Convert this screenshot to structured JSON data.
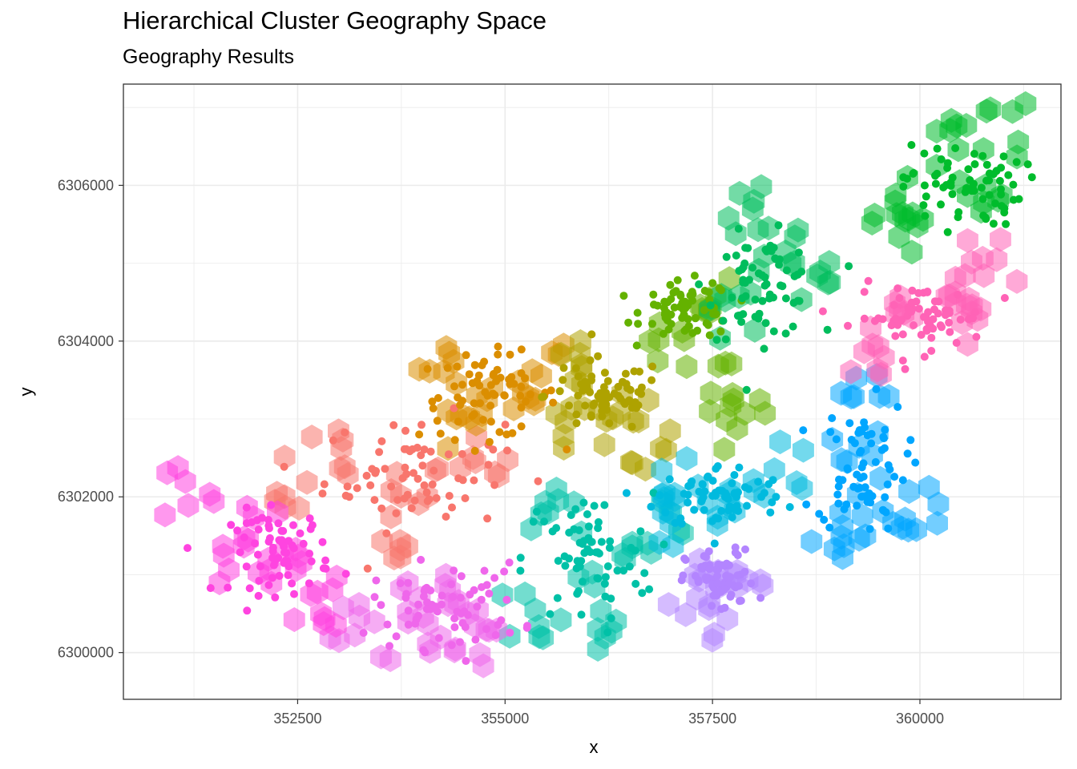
{
  "title": "Hierarchical Cluster Geography Space",
  "subtitle": "Geography Results",
  "chart_data": {
    "type": "scatter",
    "title": "Hierarchical Cluster Geography Space",
    "subtitle": "Geography Results",
    "xlabel": "x",
    "ylabel": "y",
    "xlim": [
      350400,
      361700
    ],
    "ylim": [
      6299400,
      6307300
    ],
    "x_ticks": [
      352500,
      355000,
      357500,
      360000
    ],
    "x_tick_labels": [
      "352500",
      "355000",
      "357500",
      "360000"
    ],
    "y_ticks": [
      6300000,
      6302000,
      6304000,
      6306000
    ],
    "y_tick_labels": [
      "6300000",
      "6302000",
      "6304000",
      "6306000"
    ],
    "grid": true,
    "legend": "none",
    "theme": "bw",
    "layers": [
      "hexagonal density regions (semi-transparent)",
      "points"
    ],
    "series": [
      {
        "color": "#F8766D",
        "center": [
          353900,
          6302300
        ],
        "spread": [
          900,
          600
        ],
        "hex_regions": [
          [
            352900,
            6302500
          ],
          [
            353900,
            6302100
          ],
          [
            354700,
            6302500
          ],
          [
            353600,
            6301500
          ],
          [
            352400,
            6302200
          ]
        ]
      },
      {
        "color": "#DB8E00",
        "center": [
          354800,
          6303300
        ],
        "spread": [
          700,
          450
        ],
        "hex_regions": [
          [
            354300,
            6303600
          ],
          [
            355000,
            6303200
          ],
          [
            354600,
            6302800
          ],
          [
            355500,
            6303600
          ]
        ]
      },
      {
        "color": "#AEA200",
        "center": [
          356200,
          6303300
        ],
        "spread": [
          600,
          400
        ],
        "hex_regions": [
          [
            355800,
            6303700
          ],
          [
            356400,
            6303100
          ],
          [
            356800,
            6302700
          ],
          [
            355900,
            6302800
          ]
        ]
      },
      {
        "color": "#64B200",
        "center": [
          357200,
          6304400
        ],
        "spread": [
          450,
          300
        ],
        "hex_regions": [
          [
            357000,
            6304000
          ],
          [
            357400,
            6304500
          ],
          [
            357800,
            6303400
          ],
          [
            357600,
            6302900
          ]
        ]
      },
      {
        "color": "#00BD5C",
        "center": [
          358100,
          6304700
        ],
        "spread": [
          550,
          550
        ],
        "hex_regions": [
          [
            357800,
            6304300
          ],
          [
            358300,
            6305200
          ],
          [
            358000,
            6305700
          ],
          [
            358700,
            6304800
          ]
        ]
      },
      {
        "color": "#00C1A7",
        "center": [
          356000,
          6301200
        ],
        "spread": [
          650,
          700
        ],
        "hex_regions": [
          [
            355500,
            6301800
          ],
          [
            356200,
            6301200
          ],
          [
            356000,
            6300300
          ],
          [
            356800,
            6301600
          ],
          [
            355300,
            6300500
          ]
        ]
      },
      {
        "color": "#00BADE",
        "center": [
          357600,
          6302000
        ],
        "spread": [
          650,
          350
        ],
        "hex_regions": [
          [
            357200,
            6302200
          ],
          [
            357900,
            6301900
          ],
          [
            358300,
            6302400
          ],
          [
            357000,
            6301700
          ]
        ]
      },
      {
        "color": "#00A6FF",
        "center": [
          359300,
          6302400
        ],
        "spread": [
          450,
          700
        ],
        "hex_regions": [
          [
            359300,
            6303300
          ],
          [
            359200,
            6302500
          ],
          [
            359500,
            6301800
          ],
          [
            358900,
            6301500
          ],
          [
            359900,
            6301900
          ]
        ]
      },
      {
        "color": "#00BC2C",
        "center": [
          360500,
          6306000
        ],
        "spread": [
          600,
          450
        ],
        "hex_regions": [
          [
            359800,
            6305900
          ],
          [
            360500,
            6306500
          ],
          [
            360700,
            6306000
          ],
          [
            359700,
            6305400
          ],
          [
            361000,
            6306700
          ]
        ]
      },
      {
        "color": "#B385FF",
        "center": [
          357600,
          6300900
        ],
        "spread": [
          350,
          350
        ],
        "hex_regions": [
          [
            357500,
            6301100
          ],
          [
            357800,
            6300700
          ],
          [
            357200,
            6300500
          ]
        ]
      },
      {
        "color": "#EF67EB",
        "center": [
          354300,
          6300600
        ],
        "spread": [
          750,
          450
        ],
        "hex_regions": [
          [
            353100,
            6300300
          ],
          [
            354000,
            6300700
          ],
          [
            354600,
            6300600
          ],
          [
            354500,
            6300100
          ],
          [
            353800,
            6300200
          ]
        ]
      },
      {
        "color": "#FF63B6",
        "center": [
          360000,
          6304300
        ],
        "spread": [
          650,
          350
        ],
        "hex_regions": [
          [
            359600,
            6304500
          ],
          [
            360300,
            6304300
          ],
          [
            360700,
            6304600
          ],
          [
            359500,
            6303800
          ],
          [
            360900,
            6305000
          ]
        ]
      },
      {
        "color": "#FF44E0",
        "center": [
          352300,
          6301300
        ],
        "spread": [
          500,
          450
        ],
        "hex_regions": [
          [
            352200,
            6301600
          ],
          [
            352500,
            6301000
          ],
          [
            352800,
            6300700
          ],
          [
            351900,
            6301200
          ],
          [
            351200,
            6302100
          ]
        ]
      }
    ]
  }
}
